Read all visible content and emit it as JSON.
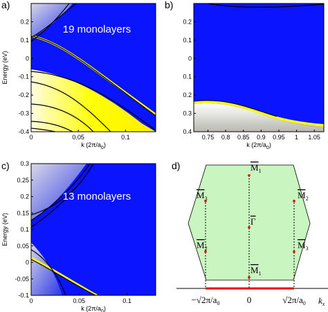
{
  "panels": [
    {
      "label": "a)",
      "annotation": "19 monolayers",
      "ylabel": "Energy (eV)",
      "xlabel": {
        "pre": "k (2π/a",
        "sub": "0",
        "post": ")"
      },
      "xlim": [
        0,
        0.132
      ],
      "ylim": [
        -0.4,
        0.3
      ],
      "xticks": [
        0,
        0.05,
        0.1
      ],
      "yticks": [
        -0.4,
        -0.3,
        -0.2,
        -0.1,
        0,
        0.1,
        0.2
      ]
    },
    {
      "label": "b)",
      "xlabel": {
        "pre": "k (2π/a",
        "sub": "0",
        "post": ")"
      },
      "xlim": [
        0.71,
        1.077
      ],
      "ylim": [
        -0.4,
        0.3
      ],
      "xticks": [
        0.75,
        0.8,
        0.85,
        0.9,
        0.95,
        1,
        1.05
      ],
      "yticks": [
        {
          "value": -0.4,
          "label": "0.4"
        },
        {
          "value": -0.3,
          "label": "0.3"
        },
        {
          "value": -0.2,
          "label": "0.2"
        },
        {
          "value": -0.1,
          "label": "0.1"
        },
        0,
        0.1,
        0.2
      ]
    },
    {
      "label": "c)",
      "annotation": "13 monolayers",
      "ylabel": "Energy (eV)",
      "xlabel": {
        "pre": "k (2π/a",
        "sub": "0",
        "post": ")"
      },
      "xlim": [
        0,
        0.13
      ],
      "ylim": [
        -0.1,
        0.3
      ],
      "xticks": [
        0,
        0.05,
        0.1
      ],
      "yticks": [
        -0.1,
        -0.05,
        0,
        0.05,
        0.1,
        0.15,
        0.2,
        0.25,
        0.3
      ]
    },
    {
      "label": "d)",
      "points": [
        {
          "name": "M",
          "sub": "1"
        },
        {
          "name": "M",
          "sub": "3"
        },
        {
          "name": "M",
          "sub": "2"
        },
        {
          "name": "Γ"
        },
        {
          "name": "M",
          "sub": "2"
        },
        {
          "name": "M",
          "sub": "3"
        },
        {
          "name": "M",
          "sub": "1"
        }
      ],
      "axis_ticks": [
        {
          "text": "−√2π/a",
          "sub": "0"
        },
        {
          "text": "0"
        },
        {
          "text": "√2π/a",
          "sub": "0"
        }
      ],
      "axis_label": {
        "text": "k",
        "sub": "x"
      }
    }
  ]
}
